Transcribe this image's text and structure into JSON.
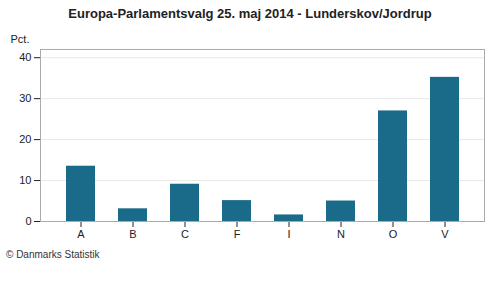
{
  "chart_data": {
    "type": "bar",
    "title": "Europa-Parlamentsvalg 25. maj 2014 - Lunderskov/Jordrup",
    "categories": [
      "A",
      "B",
      "C",
      "F",
      "I",
      "N",
      "O",
      "V"
    ],
    "values": [
      13.5,
      3.1,
      9.1,
      5.1,
      1.6,
      5.0,
      27.0,
      35.2
    ],
    "color": "#1a6b8a",
    "ylabel": "Pct.",
    "caption": "© Danmarks Statistik",
    "ylim": [
      0,
      42
    ],
    "yticks": [
      0,
      10,
      20,
      30,
      40
    ],
    "grid": true
  }
}
